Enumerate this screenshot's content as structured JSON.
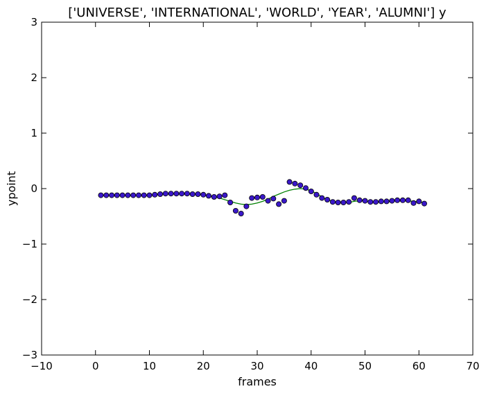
{
  "chart_data": {
    "type": "scatter",
    "title": "['UNIVERSE', 'INTERNATIONAL', 'WORLD', 'YEAR', 'ALUMNI'] y",
    "xlabel": "frames",
    "ylabel": "ypoint",
    "xlim": [
      -10,
      70
    ],
    "ylim": [
      -3,
      3
    ],
    "xticks": [
      -10,
      0,
      10,
      20,
      30,
      40,
      50,
      60,
      70
    ],
    "yticks": [
      -3,
      -2,
      -1,
      0,
      1,
      2,
      3
    ],
    "xtick_labels": [
      "−10",
      "0",
      "10",
      "20",
      "30",
      "40",
      "50",
      "60",
      "70"
    ],
    "ytick_labels": [
      "−3",
      "−2",
      "−1",
      "0",
      "1",
      "2",
      "3"
    ],
    "grid": false,
    "series": [
      {
        "kind": "scatter",
        "color": "#3a18c9",
        "edge_color": "#000000",
        "x": [
          1,
          2,
          3,
          4,
          5,
          6,
          7,
          8,
          9,
          10,
          11,
          12,
          13,
          14,
          15,
          16,
          17,
          18,
          19,
          20,
          21,
          22,
          23,
          24,
          25,
          26,
          27,
          28,
          29,
          30,
          31,
          32,
          33,
          34,
          35,
          36,
          37,
          38,
          39,
          40,
          41,
          42,
          43,
          44,
          45,
          46,
          47,
          48,
          49,
          50,
          51,
          52,
          53,
          54,
          55,
          56,
          57,
          58,
          59,
          60,
          61
        ],
        "y": [
          -0.12,
          -0.12,
          -0.12,
          -0.12,
          -0.12,
          -0.12,
          -0.12,
          -0.12,
          -0.12,
          -0.12,
          -0.11,
          -0.1,
          -0.09,
          -0.09,
          -0.09,
          -0.09,
          -0.09,
          -0.1,
          -0.1,
          -0.11,
          -0.13,
          -0.15,
          -0.14,
          -0.12,
          -0.25,
          -0.4,
          -0.45,
          -0.32,
          -0.17,
          -0.16,
          -0.15,
          -0.22,
          -0.18,
          -0.28,
          -0.22,
          0.12,
          0.09,
          0.06,
          0.01,
          -0.05,
          -0.11,
          -0.17,
          -0.2,
          -0.24,
          -0.25,
          -0.25,
          -0.24,
          -0.17,
          -0.21,
          -0.22,
          -0.24,
          -0.24,
          -0.23,
          -0.23,
          -0.22,
          -0.21,
          -0.21,
          -0.21,
          -0.26,
          -0.23,
          -0.27
        ]
      },
      {
        "kind": "line",
        "color": "#008000",
        "x": [
          1,
          2,
          3,
          4,
          5,
          6,
          7,
          8,
          9,
          10,
          11,
          12,
          13,
          14,
          15,
          16,
          17,
          18,
          19,
          20,
          21,
          22,
          23,
          24,
          25,
          26,
          27,
          28,
          29,
          30,
          31,
          32,
          33,
          34,
          35,
          36,
          37,
          38,
          39,
          40,
          41,
          42,
          43,
          44,
          45,
          46,
          47,
          48,
          49,
          50,
          51,
          52,
          53,
          54,
          55,
          56,
          57,
          58,
          59,
          60,
          61
        ],
        "y": [
          -0.12,
          -0.12,
          -0.12,
          -0.12,
          -0.12,
          -0.12,
          -0.12,
          -0.12,
          -0.12,
          -0.12,
          -0.11,
          -0.1,
          -0.09,
          -0.09,
          -0.09,
          -0.09,
          -0.09,
          -0.1,
          -0.1,
          -0.11,
          -0.13,
          -0.15,
          -0.17,
          -0.2,
          -0.23,
          -0.26,
          -0.28,
          -0.29,
          -0.28,
          -0.26,
          -0.23,
          -0.19,
          -0.14,
          -0.1,
          -0.06,
          -0.03,
          -0.01,
          0.0,
          -0.01,
          -0.04,
          -0.09,
          -0.15,
          -0.2,
          -0.23,
          -0.25,
          -0.25,
          -0.25,
          -0.23,
          -0.22,
          -0.22,
          -0.23,
          -0.24,
          -0.24,
          -0.24,
          -0.23,
          -0.22,
          -0.22,
          -0.22,
          -0.23,
          -0.24,
          -0.25
        ]
      }
    ]
  }
}
